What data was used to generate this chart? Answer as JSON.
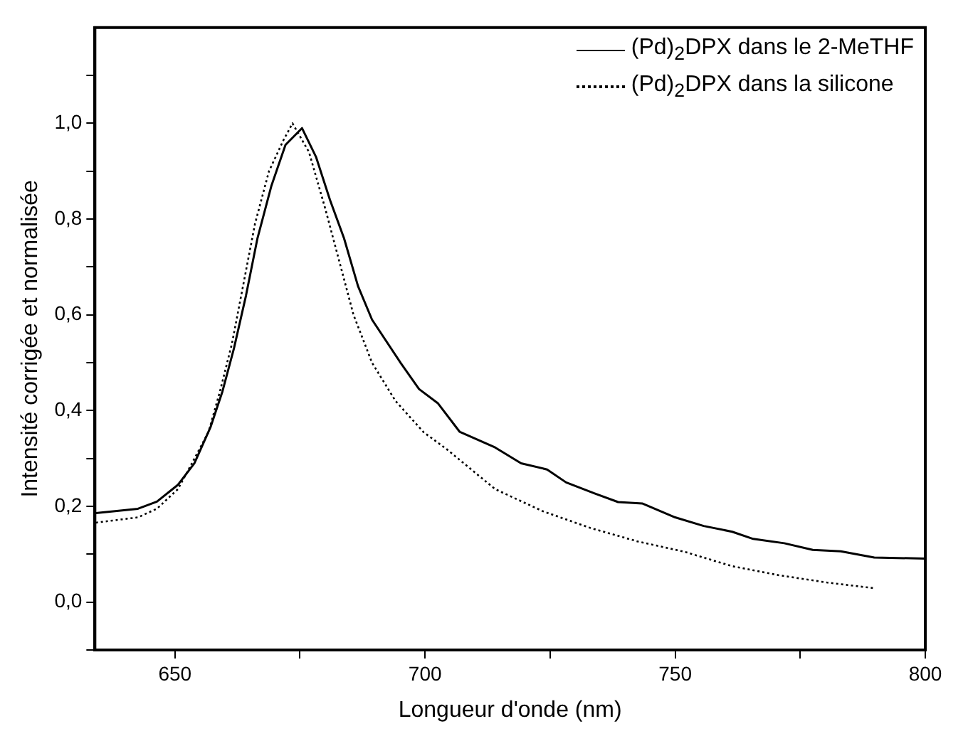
{
  "chart_data": {
    "type": "line",
    "xlabel": "Longueur d'onde (nm)",
    "ylabel": "Intensité corrigée et normalisée",
    "xlim": [
      634,
      800
    ],
    "ylim": [
      -0.1,
      1.2
    ],
    "xticks": [
      650,
      {
        "value": 675,
        "label": null
      },
      700,
      {
        "value": 725,
        "label": null
      },
      750,
      {
        "value": 775,
        "label": null
      },
      800
    ],
    "yticks": [
      {
        "value": -0.1,
        "label": null
      },
      {
        "value": 0,
        "label": "0,0"
      },
      {
        "value": 0.1,
        "label": null
      },
      {
        "value": 0.2,
        "label": "0,2"
      },
      {
        "value": 0.3,
        "label": null
      },
      {
        "value": 0.4,
        "label": "0,4"
      },
      {
        "value": 0.5,
        "label": null
      },
      {
        "value": 0.6,
        "label": "0,6"
      },
      {
        "value": 0.7,
        "label": null
      },
      {
        "value": 0.8,
        "label": "0,8"
      },
      {
        "value": 0.9,
        "label": null
      },
      {
        "value": 1,
        "label": "1,0"
      },
      {
        "value": 1.1,
        "label": null
      }
    ],
    "legend": "top right",
    "marker": "none",
    "series": [
      {
        "name": "(Pd)$_{2}$DPX dans le 2-MeTHF",
        "color": "#000000",
        "line_style": "solid",
        "x": [
          634.2,
          642.6,
          646.4,
          650.6,
          653.9,
          657.1,
          659.5,
          661.8,
          664.2,
          666.5,
          669.3,
          672.1,
          675.4,
          678.2,
          681.0,
          683.8,
          686.6,
          689.4,
          695.1,
          698.8,
          702.6,
          706.9,
          714.0,
          719.2,
          724.4,
          728.2,
          733.9,
          738.6,
          743.4,
          750,
          755.7,
          761.4,
          765.6,
          771.8,
          777.5,
          783.1,
          789.8,
          800
        ],
        "values": [
          0.186,
          0.195,
          0.21,
          0.245,
          0.29,
          0.365,
          0.44,
          0.53,
          0.64,
          0.76,
          0.87,
          0.955,
          0.99,
          0.93,
          0.84,
          0.76,
          0.66,
          0.59,
          0.5,
          0.445,
          0.415,
          0.356,
          0.323,
          0.29,
          0.277,
          0.25,
          0.227,
          0.209,
          0.206,
          0.177,
          0.159,
          0.147,
          0.132,
          0.123,
          0.109,
          0.106,
          0.093,
          0.091
        ]
      },
      {
        "name": "(Pd)$_{2}$DPX dans la silicone",
        "color": "#000000",
        "line_style": "dotted",
        "x": [
          634.2,
          642.6,
          646.4,
          650.6,
          653.4,
          656.7,
          659.0,
          661.4,
          663.7,
          666.0,
          668.8,
          671.7,
          673.5,
          676.8,
          680.1,
          682.9,
          685.7,
          689.4,
          694.1,
          699.7,
          704.5,
          714.0,
          723.5,
          733.0,
          742.4,
          751.9,
          761.4,
          770.8,
          780.3,
          789.8
        ],
        "values": [
          0.166,
          0.177,
          0.195,
          0.236,
          0.29,
          0.355,
          0.44,
          0.54,
          0.665,
          0.79,
          0.9,
          0.965,
          1.0,
          0.94,
          0.82,
          0.71,
          0.6,
          0.5,
          0.42,
          0.355,
          0.318,
          0.236,
          0.19,
          0.155,
          0.127,
          0.105,
          0.075,
          0.056,
          0.041,
          0.029
        ]
      }
    ]
  }
}
